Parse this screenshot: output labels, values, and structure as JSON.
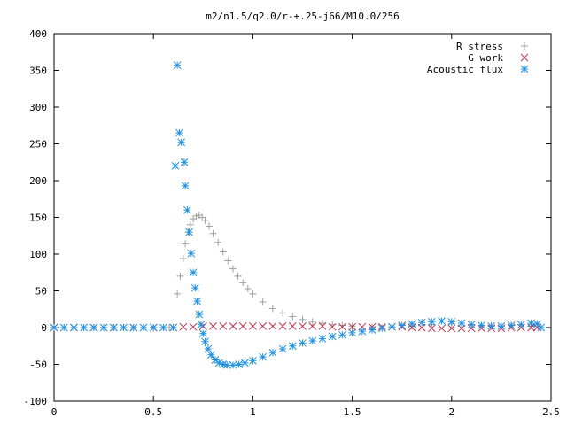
{
  "chart_data": {
    "type": "scatter",
    "title": "m2/n1.5/q2.0/r-+.25-j66/M10.0/256",
    "xlabel": "",
    "ylabel": "",
    "xlim": [
      0,
      2.5
    ],
    "ylim": [
      -100,
      400
    ],
    "x_ticks": [
      "0",
      "0.5",
      "1",
      "1.5",
      "2",
      "2.5"
    ],
    "y_ticks": [
      "-100",
      "-50",
      "0",
      "50",
      "100",
      "150",
      "200",
      "250",
      "300",
      "350",
      "400"
    ],
    "grid": false,
    "legend_position": "top-right",
    "series": [
      {
        "name": "R stress",
        "marker": "plus",
        "color": "#a0a0a0",
        "points": [
          [
            0.0,
            0
          ],
          [
            0.1,
            0
          ],
          [
            0.2,
            0
          ],
          [
            0.3,
            0
          ],
          [
            0.4,
            0
          ],
          [
            0.5,
            0
          ],
          [
            0.58,
            0
          ],
          [
            0.62,
            46
          ],
          [
            0.635,
            70
          ],
          [
            0.65,
            94
          ],
          [
            0.66,
            114
          ],
          [
            0.675,
            130
          ],
          [
            0.685,
            140
          ],
          [
            0.7,
            148
          ],
          [
            0.715,
            152
          ],
          [
            0.73,
            153
          ],
          [
            0.745,
            150
          ],
          [
            0.76,
            146
          ],
          [
            0.78,
            138
          ],
          [
            0.8,
            128
          ],
          [
            0.825,
            116
          ],
          [
            0.85,
            103
          ],
          [
            0.875,
            91
          ],
          [
            0.9,
            80
          ],
          [
            0.925,
            70
          ],
          [
            0.95,
            61
          ],
          [
            0.975,
            53
          ],
          [
            1.0,
            46
          ],
          [
            1.05,
            35
          ],
          [
            1.1,
            26
          ],
          [
            1.15,
            20
          ],
          [
            1.2,
            15
          ],
          [
            1.25,
            11
          ],
          [
            1.3,
            8
          ],
          [
            1.35,
            6
          ],
          [
            1.4,
            4
          ],
          [
            1.45,
            3
          ],
          [
            1.5,
            2
          ],
          [
            1.6,
            1
          ],
          [
            1.7,
            1
          ],
          [
            1.8,
            2
          ],
          [
            1.9,
            4
          ],
          [
            2.0,
            5
          ],
          [
            2.1,
            4
          ],
          [
            2.2,
            3
          ],
          [
            2.3,
            3
          ],
          [
            2.4,
            2
          ]
        ]
      },
      {
        "name": "G work",
        "marker": "cross",
        "color": "#c0304a",
        "points": [
          [
            0.0,
            0
          ],
          [
            0.1,
            0
          ],
          [
            0.2,
            0
          ],
          [
            0.3,
            0
          ],
          [
            0.4,
            0
          ],
          [
            0.5,
            0
          ],
          [
            0.6,
            0
          ],
          [
            0.65,
            1
          ],
          [
            0.7,
            1
          ],
          [
            0.75,
            2
          ],
          [
            0.8,
            2
          ],
          [
            0.85,
            2
          ],
          [
            0.9,
            2
          ],
          [
            0.95,
            2
          ],
          [
            1.0,
            2
          ],
          [
            1.05,
            2
          ],
          [
            1.1,
            2
          ],
          [
            1.15,
            2
          ],
          [
            1.2,
            2
          ],
          [
            1.25,
            2
          ],
          [
            1.3,
            2
          ],
          [
            1.35,
            2
          ],
          [
            1.4,
            1
          ],
          [
            1.45,
            1
          ],
          [
            1.5,
            1
          ],
          [
            1.55,
            1
          ],
          [
            1.6,
            1
          ],
          [
            1.65,
            1
          ],
          [
            1.7,
            1
          ],
          [
            1.75,
            1
          ],
          [
            1.8,
            0
          ],
          [
            1.85,
            0
          ],
          [
            1.9,
            -1
          ],
          [
            1.95,
            -1
          ],
          [
            2.0,
            -1
          ],
          [
            2.05,
            -1
          ],
          [
            2.1,
            -1
          ],
          [
            2.15,
            -1
          ],
          [
            2.2,
            -1
          ],
          [
            2.25,
            -1
          ],
          [
            2.3,
            0
          ],
          [
            2.35,
            0
          ],
          [
            2.4,
            0
          ],
          [
            2.43,
            0
          ]
        ]
      },
      {
        "name": "Acoustic flux",
        "marker": "star",
        "color": "#1e90e0",
        "points": [
          [
            0.0,
            0
          ],
          [
            0.05,
            0
          ],
          [
            0.1,
            0
          ],
          [
            0.15,
            0
          ],
          [
            0.2,
            0
          ],
          [
            0.25,
            0
          ],
          [
            0.3,
            0
          ],
          [
            0.35,
            0
          ],
          [
            0.4,
            0
          ],
          [
            0.45,
            0
          ],
          [
            0.5,
            0
          ],
          [
            0.55,
            0
          ],
          [
            0.6,
            0
          ],
          [
            0.61,
            220
          ],
          [
            0.62,
            357
          ],
          [
            0.63,
            265
          ],
          [
            0.64,
            252
          ],
          [
            0.655,
            225
          ],
          [
            0.66,
            193
          ],
          [
            0.67,
            160
          ],
          [
            0.68,
            130
          ],
          [
            0.69,
            101
          ],
          [
            0.7,
            75
          ],
          [
            0.71,
            54
          ],
          [
            0.72,
            36
          ],
          [
            0.73,
            18
          ],
          [
            0.74,
            4
          ],
          [
            0.75,
            -8
          ],
          [
            0.76,
            -19
          ],
          [
            0.775,
            -29
          ],
          [
            0.79,
            -37
          ],
          [
            0.81,
            -44
          ],
          [
            0.83,
            -48
          ],
          [
            0.85,
            -50
          ],
          [
            0.87,
            -51
          ],
          [
            0.9,
            -51
          ],
          [
            0.93,
            -50
          ],
          [
            0.96,
            -48
          ],
          [
            1.0,
            -45
          ],
          [
            1.05,
            -40
          ],
          [
            1.1,
            -34
          ],
          [
            1.15,
            -29
          ],
          [
            1.2,
            -25
          ],
          [
            1.25,
            -21
          ],
          [
            1.3,
            -18
          ],
          [
            1.35,
            -15
          ],
          [
            1.4,
            -12
          ],
          [
            1.45,
            -10
          ],
          [
            1.5,
            -7
          ],
          [
            1.55,
            -5
          ],
          [
            1.6,
            -3
          ],
          [
            1.65,
            -1
          ],
          [
            1.7,
            1
          ],
          [
            1.75,
            3
          ],
          [
            1.8,
            5
          ],
          [
            1.85,
            7
          ],
          [
            1.9,
            8
          ],
          [
            1.95,
            9
          ],
          [
            2.0,
            8
          ],
          [
            2.05,
            6
          ],
          [
            2.1,
            4
          ],
          [
            2.15,
            3
          ],
          [
            2.2,
            2
          ],
          [
            2.25,
            2
          ],
          [
            2.3,
            3
          ],
          [
            2.35,
            4
          ],
          [
            2.4,
            6
          ],
          [
            2.43,
            5
          ],
          [
            2.45,
            0
          ]
        ]
      }
    ]
  }
}
